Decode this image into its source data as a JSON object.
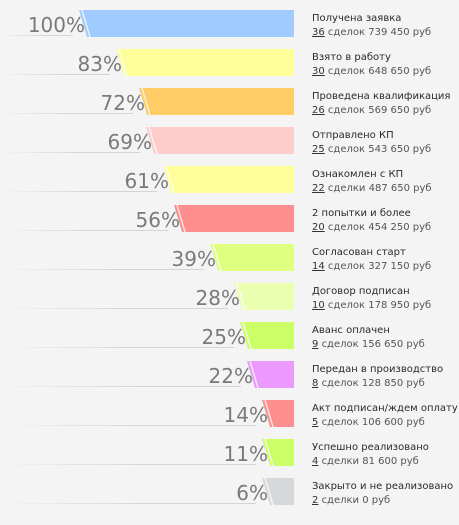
{
  "funnel": {
    "stages": [
      {
        "percent": "100%",
        "value": 100,
        "title": "Получена заявка",
        "count": "36",
        "details": "сделок 739 450 руб",
        "color": "#9fcbff"
      },
      {
        "percent": "83%",
        "value": 83,
        "title": "Взято в работу",
        "count": "30",
        "details": "сделок 648 650 руб",
        "color": "#ffff99"
      },
      {
        "percent": "72%",
        "value": 72,
        "title": "Проведена квалификация",
        "count": "26",
        "details": "сделок 569 650 руб",
        "color": "#ffcc66"
      },
      {
        "percent": "69%",
        "value": 69,
        "title": "Отправлено КП",
        "count": "25",
        "details": "сделок 543 650 руб",
        "color": "#ffcccc"
      },
      {
        "percent": "61%",
        "value": 61,
        "title": "Ознакомлен с КП",
        "count": "22",
        "details": "сделки 487 650 руб",
        "color": "#ffff99"
      },
      {
        "percent": "56%",
        "value": 56,
        "title": "2 попытки и более",
        "count": "20",
        "details": "сделок 454 250 руб",
        "color": "#ff8f8f"
      },
      {
        "percent": "39%",
        "value": 39,
        "title": "Согласован старт",
        "count": "14",
        "details": "сделок 327 150 руб",
        "color": "#deff80"
      },
      {
        "percent": "28%",
        "value": 28,
        "title": "Договор подписан",
        "count": "10",
        "details": "сделок 178 950 руб",
        "color": "#eaffb0"
      },
      {
        "percent": "25%",
        "value": 25,
        "title": "Аванс оплачен",
        "count": "9",
        "details": "сделок 156 650 руб",
        "color": "#ccff66"
      },
      {
        "percent": "22%",
        "value": 22,
        "title": "Передан в производство",
        "count": "8",
        "details": "сделок 128 850 руб",
        "color": "#eb99ff"
      },
      {
        "percent": "14%",
        "value": 14,
        "title": "Акт подписан/ждем оплату",
        "count": "5",
        "details": "сделок 106 600 руб",
        "color": "#ff8f8f"
      },
      {
        "percent": "11%",
        "value": 11,
        "title": "Успешно реализовано",
        "count": "4",
        "details": "сделки 81 600 руб",
        "color": "#ccff66"
      },
      {
        "percent": "6%",
        "value": 6,
        "title": "Закрыто и не реализовано",
        "count": "2",
        "details": "сделки 0 руб",
        "color": "#d6d9db"
      }
    ]
  }
}
